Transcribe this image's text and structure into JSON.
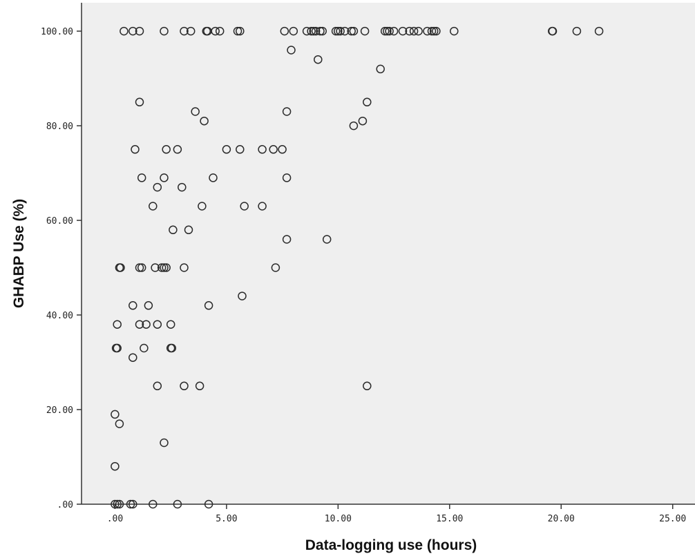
{
  "chart_data": {
    "type": "scatter",
    "xlabel": "Data-logging use (hours)",
    "ylabel": "GHABP Use (%)",
    "xlim": [
      -1.5,
      26
    ],
    "ylim": [
      0,
      106
    ],
    "x_ticks": [
      0,
      5,
      10,
      15,
      20,
      25
    ],
    "x_tick_labels": [
      ".00",
      "5.00",
      "10.00",
      "15.00",
      "20.00",
      "25.00"
    ],
    "y_ticks": [
      0,
      20,
      40,
      60,
      80,
      100
    ],
    "y_tick_labels": [
      ".00",
      "20.00",
      "40.00",
      "60.00",
      "80.00",
      "100.00"
    ],
    "grid": false,
    "marker": "open-circle",
    "colors": {
      "plot_background": "#efefef",
      "marker": "#2b2b2b",
      "axis": "#333333"
    },
    "points": [
      [
        0.4,
        100
      ],
      [
        0.8,
        100
      ],
      [
        1.1,
        100
      ],
      [
        2.2,
        100
      ],
      [
        3.1,
        100
      ],
      [
        3.4,
        100
      ],
      [
        4.1,
        100
      ],
      [
        4.15,
        100
      ],
      [
        4.5,
        100
      ],
      [
        4.7,
        100
      ],
      [
        5.5,
        100
      ],
      [
        5.6,
        100
      ],
      [
        7.6,
        100
      ],
      [
        8.0,
        100
      ],
      [
        8.6,
        100
      ],
      [
        8.8,
        100
      ],
      [
        8.9,
        100
      ],
      [
        9.0,
        100
      ],
      [
        9.2,
        100
      ],
      [
        9.3,
        100
      ],
      [
        9.9,
        100
      ],
      [
        10.0,
        100
      ],
      [
        10.1,
        100
      ],
      [
        10.3,
        100
      ],
      [
        10.6,
        100
      ],
      [
        10.7,
        100
      ],
      [
        11.2,
        100
      ],
      [
        12.1,
        100
      ],
      [
        12.2,
        100
      ],
      [
        12.3,
        100
      ],
      [
        12.5,
        100
      ],
      [
        12.9,
        100
      ],
      [
        13.2,
        100
      ],
      [
        13.4,
        100
      ],
      [
        13.6,
        100
      ],
      [
        14.0,
        100
      ],
      [
        14.2,
        100
      ],
      [
        14.3,
        100
      ],
      [
        14.4,
        100
      ],
      [
        15.2,
        100
      ],
      [
        19.6,
        100
      ],
      [
        19.62,
        100
      ],
      [
        20.7,
        100
      ],
      [
        21.7,
        100
      ],
      [
        7.9,
        96
      ],
      [
        9.1,
        94
      ],
      [
        11.9,
        92
      ],
      [
        1.1,
        85
      ],
      [
        11.3,
        85
      ],
      [
        3.6,
        83
      ],
      [
        7.7,
        83
      ],
      [
        4.0,
        81
      ],
      [
        11.1,
        81
      ],
      [
        10.7,
        80
      ],
      [
        0.9,
        75
      ],
      [
        2.3,
        75
      ],
      [
        2.8,
        75
      ],
      [
        5.0,
        75
      ],
      [
        5.6,
        75
      ],
      [
        6.6,
        75
      ],
      [
        7.1,
        75
      ],
      [
        7.5,
        75
      ],
      [
        1.2,
        69
      ],
      [
        2.2,
        69
      ],
      [
        4.4,
        69
      ],
      [
        7.7,
        69
      ],
      [
        1.9,
        67
      ],
      [
        3.0,
        67
      ],
      [
        1.7,
        63
      ],
      [
        3.9,
        63
      ],
      [
        5.8,
        63
      ],
      [
        6.6,
        63
      ],
      [
        2.6,
        58
      ],
      [
        3.3,
        58
      ],
      [
        7.7,
        56
      ],
      [
        9.5,
        56
      ],
      [
        0.2,
        50
      ],
      [
        0.25,
        50
      ],
      [
        1.1,
        50
      ],
      [
        1.2,
        50
      ],
      [
        1.8,
        50
      ],
      [
        2.1,
        50
      ],
      [
        2.2,
        50
      ],
      [
        2.3,
        50
      ],
      [
        3.1,
        50
      ],
      [
        7.2,
        50
      ],
      [
        5.7,
        44
      ],
      [
        0.8,
        42
      ],
      [
        1.5,
        42
      ],
      [
        4.2,
        42
      ],
      [
        0.1,
        38
      ],
      [
        1.1,
        38
      ],
      [
        1.4,
        38
      ],
      [
        1.9,
        38
      ],
      [
        2.5,
        38
      ],
      [
        0.05,
        33
      ],
      [
        0.1,
        33
      ],
      [
        1.3,
        33
      ],
      [
        2.5,
        33
      ],
      [
        2.55,
        33
      ],
      [
        0.8,
        31
      ],
      [
        1.9,
        25
      ],
      [
        3.1,
        25
      ],
      [
        3.8,
        25
      ],
      [
        11.3,
        25
      ],
      [
        0.0,
        19
      ],
      [
        0.2,
        17
      ],
      [
        2.2,
        13
      ],
      [
        0.0,
        8
      ],
      [
        0.0,
        0
      ],
      [
        0.1,
        0
      ],
      [
        0.2,
        0
      ],
      [
        0.7,
        0
      ],
      [
        0.8,
        0
      ],
      [
        1.7,
        0
      ],
      [
        2.8,
        0
      ],
      [
        4.2,
        0
      ]
    ]
  }
}
